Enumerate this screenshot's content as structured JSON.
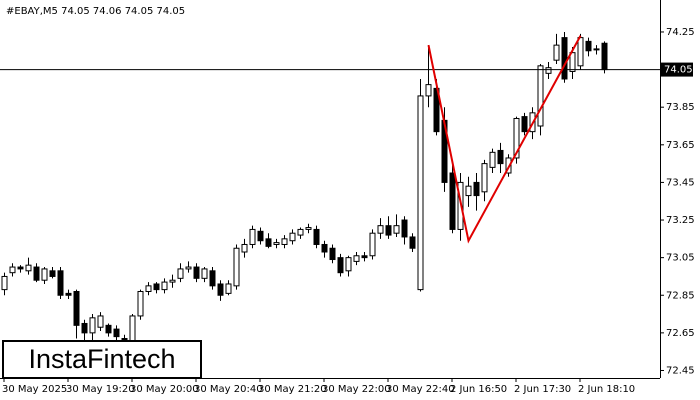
{
  "chart_data": {
    "type": "candlestick",
    "title": "#EBAY,M5  74.05 74.06 74.05 74.05",
    "categories": [
      "30 May 2025",
      null,
      null,
      null,
      null,
      null,
      null,
      null,
      "30 May 19:20",
      null,
      null,
      null,
      null,
      null,
      null,
      null,
      "30 May 20:00",
      null,
      null,
      null,
      null,
      null,
      null,
      null,
      "30 May 20:40",
      null,
      null,
      null,
      null,
      null,
      null,
      null,
      "30 May 21:20",
      null,
      null,
      null,
      null,
      null,
      null,
      null,
      "30 May 22:00",
      null,
      null,
      null,
      null,
      null,
      null,
      null,
      "30 May 22:40",
      null,
      null,
      null,
      null,
      null,
      null,
      null,
      "2 Jun 16:50",
      null,
      null,
      null,
      null,
      null,
      null,
      null,
      "2 Jun 17:30",
      null,
      null,
      null,
      null,
      null,
      null,
      null,
      "2 Jun 18:10",
      null,
      null,
      null
    ],
    "open": [
      72.88,
      72.97,
      73.0,
      72.98,
      73.0,
      72.93,
      72.98,
      72.98,
      72.86,
      72.87,
      72.7,
      72.65,
      72.68,
      72.69,
      72.67,
      72.62,
      72.6,
      72.74,
      72.87,
      72.91,
      72.88,
      72.92,
      72.94,
      72.99,
      73.0,
      72.94,
      72.98,
      72.91,
      72.86,
      72.9,
      73.08,
      73.12,
      73.19,
      73.15,
      73.12,
      73.12,
      73.14,
      73.17,
      73.2,
      73.2,
      73.12,
      73.1,
      73.05,
      72.98,
      73.03,
      73.06,
      73.06,
      73.18,
      73.22,
      73.18,
      73.25,
      73.16,
      72.88,
      73.91,
      73.95,
      73.78,
      73.5,
      73.2,
      73.38,
      73.45,
      73.4,
      73.53,
      73.62,
      73.5,
      73.58,
      73.8,
      73.72,
      73.75,
      74.03,
      74.1,
      74.22,
      74.04,
      74.07,
      74.2,
      74.16,
      74.19
    ],
    "high": [
      72.97,
      73.02,
      73.01,
      73.05,
      73.02,
      73.0,
      73.0,
      73.0,
      72.88,
      72.88,
      72.72,
      72.75,
      72.76,
      72.7,
      72.69,
      72.64,
      72.75,
      72.88,
      72.92,
      72.92,
      72.94,
      72.96,
      73.02,
      73.03,
      73.02,
      73.0,
      73.0,
      72.93,
      72.93,
      73.12,
      73.15,
      73.22,
      73.21,
      73.18,
      73.15,
      73.17,
      73.2,
      73.21,
      73.23,
      73.22,
      73.14,
      73.12,
      73.07,
      73.06,
      73.08,
      73.08,
      73.2,
      73.26,
      73.27,
      73.28,
      73.27,
      73.18,
      74.0,
      74.18,
      74.0,
      73.85,
      73.55,
      73.5,
      73.48,
      73.5,
      73.57,
      73.63,
      73.66,
      73.6,
      73.8,
      73.82,
      73.85,
      74.08,
      74.09,
      74.24,
      74.25,
      74.17,
      74.24,
      74.22,
      74.18,
      74.2
    ],
    "low": [
      72.85,
      72.95,
      72.97,
      72.96,
      72.92,
      72.91,
      72.94,
      72.83,
      72.83,
      72.62,
      72.6,
      72.6,
      72.66,
      72.63,
      72.57,
      72.55,
      72.5,
      72.72,
      72.85,
      72.86,
      72.86,
      72.89,
      72.92,
      72.97,
      72.92,
      72.92,
      72.88,
      72.82,
      72.85,
      72.88,
      73.05,
      73.1,
      73.12,
      73.1,
      73.1,
      73.1,
      73.12,
      73.15,
      73.18,
      73.1,
      73.05,
      73.02,
      72.95,
      72.95,
      73.01,
      73.03,
      73.04,
      73.15,
      73.15,
      73.16,
      73.12,
      73.08,
      72.87,
      73.85,
      73.7,
      73.4,
      73.18,
      73.14,
      73.32,
      73.3,
      73.35,
      73.5,
      73.5,
      73.48,
      73.55,
      73.7,
      73.68,
      73.7,
      74.0,
      74.08,
      73.98,
      74.0,
      74.05,
      74.12,
      74.13,
      74.03
    ],
    "close": [
      72.95,
      73.0,
      72.99,
      73.01,
      72.93,
      72.99,
      72.95,
      72.85,
      72.85,
      72.69,
      72.65,
      72.73,
      72.74,
      72.65,
      72.63,
      72.61,
      72.74,
      72.87,
      72.9,
      72.88,
      72.92,
      72.93,
      72.99,
      73.0,
      72.94,
      72.99,
      72.9,
      72.85,
      72.91,
      73.1,
      73.12,
      73.2,
      73.14,
      73.11,
      73.13,
      73.15,
      73.18,
      73.2,
      73.21,
      73.12,
      73.08,
      73.04,
      72.97,
      73.05,
      73.06,
      73.05,
      73.18,
      73.22,
      73.17,
      73.22,
      73.16,
      73.1,
      73.91,
      73.97,
      73.72,
      73.45,
      73.2,
      73.45,
      73.43,
      73.38,
      73.55,
      73.61,
      73.55,
      73.58,
      73.79,
      73.72,
      73.82,
      74.07,
      74.06,
      74.18,
      74.0,
      74.14,
      74.22,
      74.15,
      74.16,
      74.05
    ],
    "ylim": [
      72.41,
      74.42
    ],
    "yticks": [
      74.25,
      73.85,
      73.65,
      73.45,
      73.25,
      73.05,
      72.85,
      72.65,
      72.45
    ],
    "last_price": 74.05,
    "pattern_line": {
      "color": "#e00000",
      "x": [
        53,
        58,
        72
      ],
      "y": [
        74.18,
        73.14,
        74.23
      ]
    },
    "watermark": "InstaFintech"
  }
}
